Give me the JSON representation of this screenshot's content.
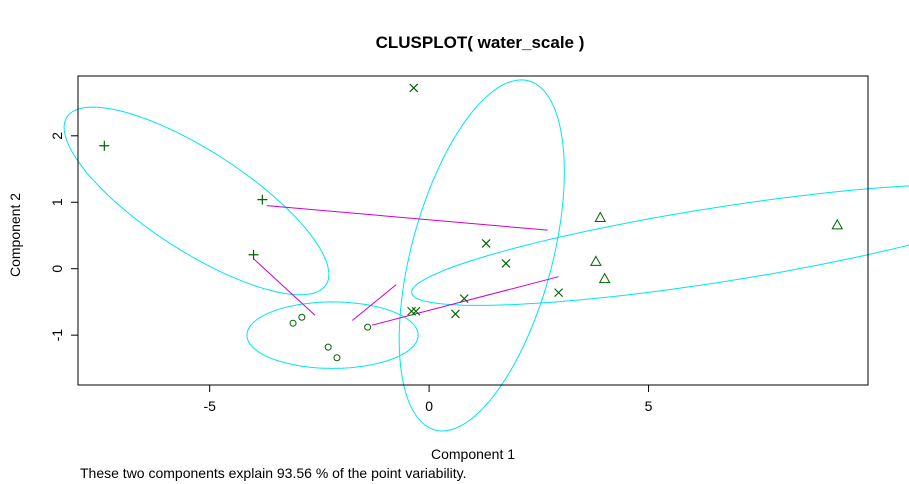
{
  "chart_data": {
    "type": "scatter",
    "title": "CLUSPLOT( water_scale )",
    "xlabel": "Component 1",
    "ylabel": "Component 2",
    "footnote": "These two components explain 93.56 % of the point variability.",
    "xlim": [
      -8,
      10
    ],
    "ylim": [
      -1.75,
      2.9
    ],
    "xticks": [
      -5,
      0,
      5
    ],
    "yticks": [
      -1,
      0,
      1,
      2
    ],
    "colors": {
      "points": "#006400",
      "ellipses": "#00e5ee",
      "lines": "#cc00cc",
      "axes": "#000000"
    },
    "clusters": [
      {
        "id": 1,
        "symbol": "circle",
        "points": [
          [
            -3.1,
            -0.82
          ],
          [
            -2.9,
            -0.73
          ],
          [
            -2.3,
            -1.18
          ],
          [
            -2.1,
            -1.34
          ],
          [
            -1.4,
            -0.88
          ]
        ],
        "ellipse": {
          "center": [
            -2.2,
            -1.0
          ],
          "axis1": [
            1.95,
            0.0
          ],
          "axis2": [
            0.0,
            0.5
          ]
        }
      },
      {
        "id": 2,
        "symbol": "plus",
        "points": [
          [
            -7.4,
            1.85
          ],
          [
            -3.8,
            1.04
          ],
          [
            -4.0,
            0.21
          ]
        ],
        "ellipse": {
          "center": [
            -5.3,
            1.02
          ],
          "axis1": [
            3.0,
            -1.19
          ],
          "axis2": [
            0.31,
            0.76
          ]
        }
      },
      {
        "id": 3,
        "symbol": "cross",
        "points": [
          [
            -0.35,
            2.72
          ],
          [
            1.3,
            0.38
          ],
          [
            1.75,
            0.08
          ],
          [
            2.95,
            -0.36
          ],
          [
            0.8,
            -0.45
          ],
          [
            0.6,
            -0.68
          ],
          [
            -0.3,
            -0.64
          ],
          [
            -0.4,
            -0.64
          ]
        ],
        "ellipse": {
          "center": [
            1.2,
            0.2
          ],
          "axis1": [
            1.3,
            2.55
          ],
          "axis2": [
            1.36,
            -0.69
          ]
        }
      },
      {
        "id": 4,
        "symbol": "triangle",
        "points": [
          [
            3.9,
            0.77
          ],
          [
            3.8,
            0.11
          ],
          [
            4.0,
            -0.15
          ],
          [
            9.3,
            0.66
          ]
        ],
        "ellipse": {
          "center": [
            6.6,
            0.36
          ],
          "axis1": [
            7.0,
            0.72
          ],
          "axis2": [
            -0.07,
            0.56
          ]
        }
      }
    ],
    "connecting_lines": [
      [
        [
          -3.7,
          0.95
        ],
        [
          2.7,
          0.58
        ]
      ],
      [
        [
          -1.3,
          -0.85
        ],
        [
          2.95,
          -0.12
        ]
      ],
      [
        [
          -4.0,
          0.15
        ],
        [
          -2.6,
          -0.7
        ]
      ],
      [
        [
          -1.75,
          -0.78
        ],
        [
          -0.75,
          -0.24
        ]
      ]
    ]
  }
}
